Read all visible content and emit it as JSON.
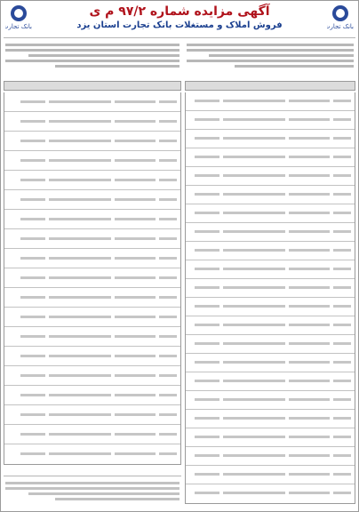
{
  "header": {
    "title": "آگهی مزایده شماره ۹۷/۲ م ی",
    "subtitle": "فروش املاک و مستغلات بانک تجارت استان یزد",
    "bank_name": "بانک تجارت"
  },
  "colors": {
    "title": "#b0121b",
    "subtitle": "#1a3f8f",
    "logo": "#2a4a9a"
  },
  "icons": {
    "logo": "bank-tejarat-logo-icon"
  }
}
